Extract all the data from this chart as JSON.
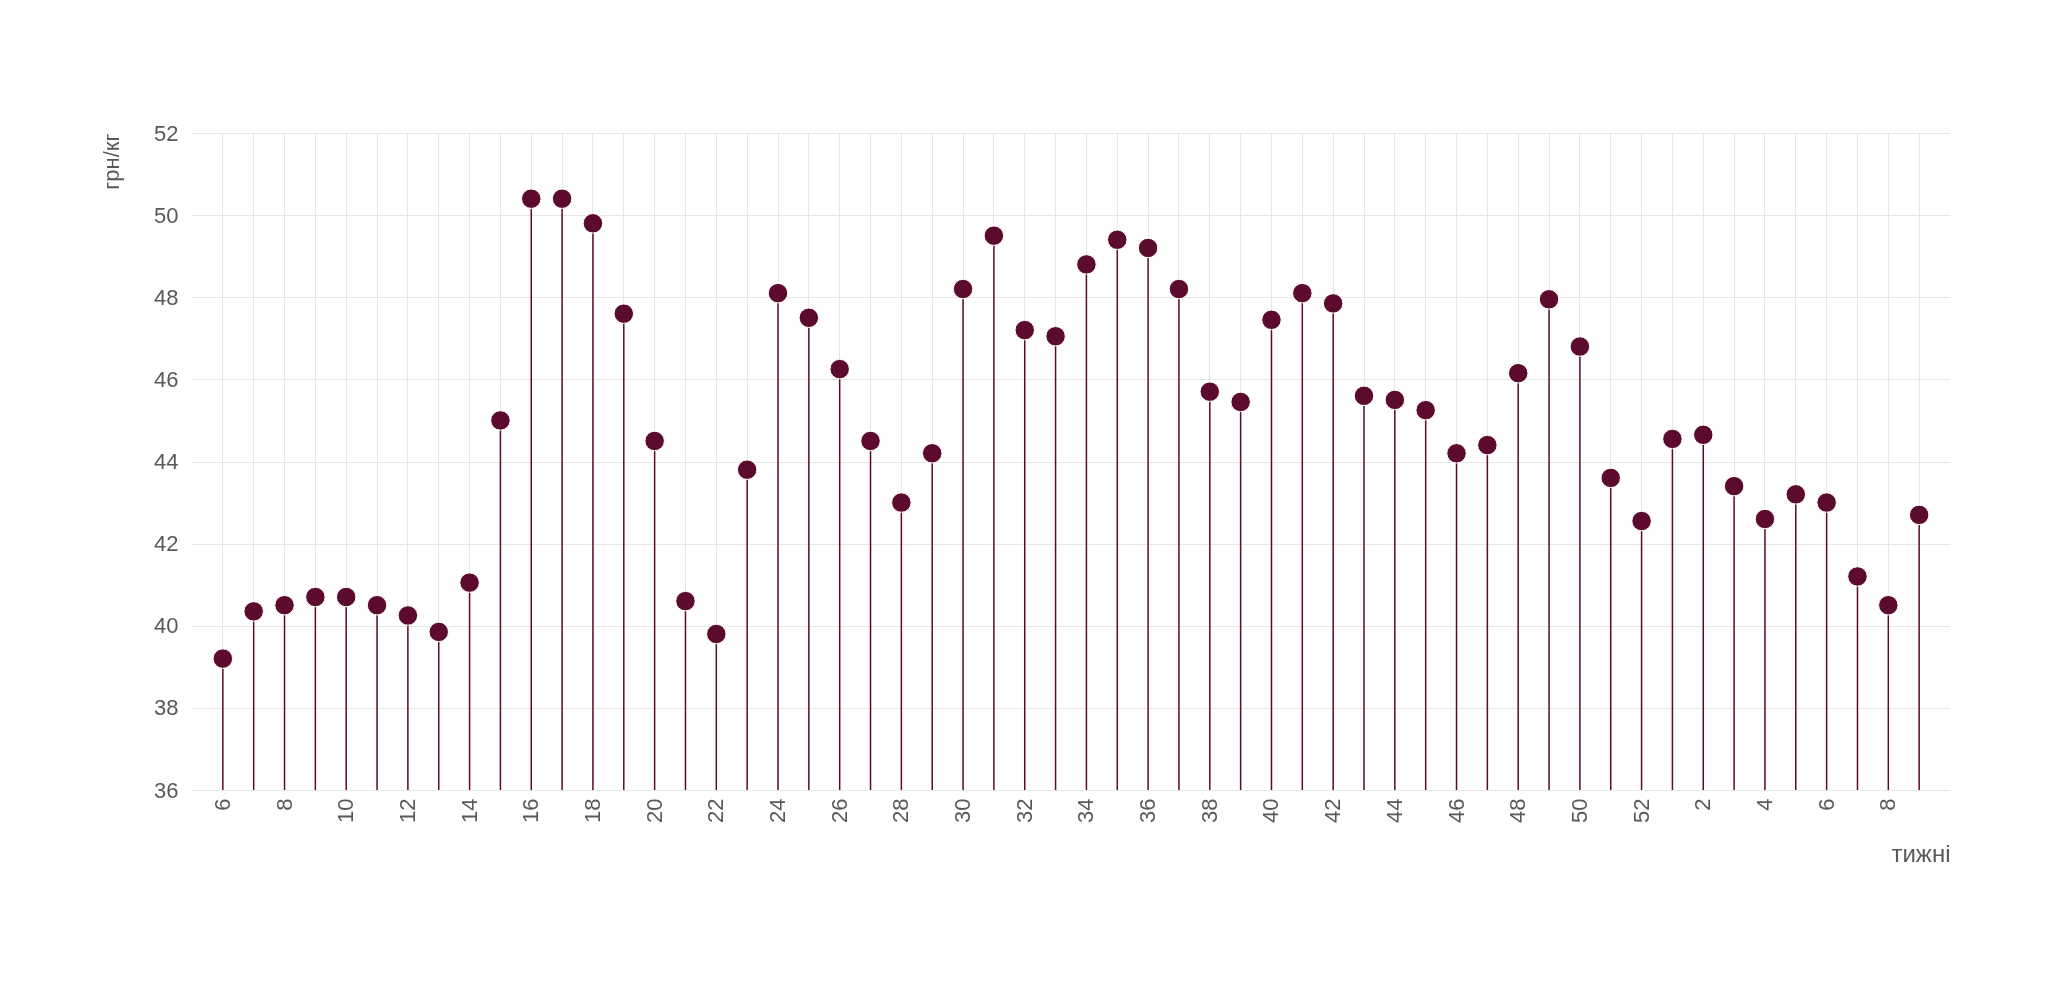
{
  "chart_data": {
    "type": "lollipop",
    "xlabel": "тижні",
    "ylabel": "грн/кг",
    "categories": [
      "6",
      null,
      "8",
      null,
      "10",
      null,
      "12",
      null,
      "14",
      null,
      "16",
      null,
      "18",
      null,
      "20",
      null,
      "22",
      null,
      "24",
      null,
      "26",
      null,
      "28",
      null,
      "30",
      null,
      "32",
      null,
      "34",
      null,
      "36",
      null,
      "38",
      null,
      "40",
      null,
      "42",
      null,
      "44",
      null,
      "46",
      null,
      "48",
      null,
      "50",
      null,
      "52",
      null,
      "2",
      null,
      "4",
      null,
      "6",
      null,
      "8",
      null
    ],
    "series": [
      {
        "color": "#5c0a2e",
        "values": [
          39.2,
          40.35,
          40.5,
          40.7,
          40.7,
          40.5,
          40.25,
          39.85,
          41.05,
          45.0,
          50.4,
          50.4,
          49.8,
          47.6,
          44.5,
          40.6,
          39.8,
          43.8,
          48.1,
          47.5,
          46.25,
          44.5,
          43.0,
          44.2,
          48.2,
          49.5,
          47.2,
          47.05,
          48.8,
          49.4,
          49.2,
          48.2,
          45.7,
          45.45,
          47.45,
          48.1,
          47.85,
          45.6,
          45.5,
          45.25,
          44.2,
          44.4,
          46.15,
          47.95,
          46.8,
          43.6,
          42.55,
          44.55,
          44.65,
          43.4,
          42.6,
          43.2,
          43.0,
          41.2,
          40.5,
          42.7
        ]
      }
    ],
    "ylim": [
      36,
      52
    ],
    "yticks": [
      36,
      38,
      40,
      42,
      44,
      46,
      48,
      50,
      52
    ],
    "grid": true,
    "marker": "circle"
  }
}
